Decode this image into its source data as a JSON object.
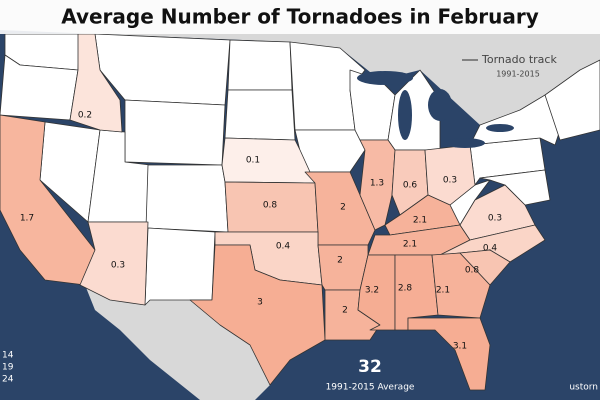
{
  "title": "Average Number of Tornadoes in February",
  "legend": {
    "label": "Tornado track",
    "years": "1991-2015"
  },
  "regions": [
    0.2,
    1.7,
    0.1,
    0.8,
    2,
    1.3,
    0.6,
    0.3,
    2.1,
    2.1,
    0.3,
    0.4,
    0.4,
    2,
    0.3,
    3,
    2,
    3.2,
    2.8,
    2.1,
    0.8,
    3.1
  ],
  "total": {
    "value": 32,
    "label": "1991-2015 Average"
  },
  "left_labels": [
    "14",
    "19",
    "24"
  ],
  "credit": "ustorn"
}
